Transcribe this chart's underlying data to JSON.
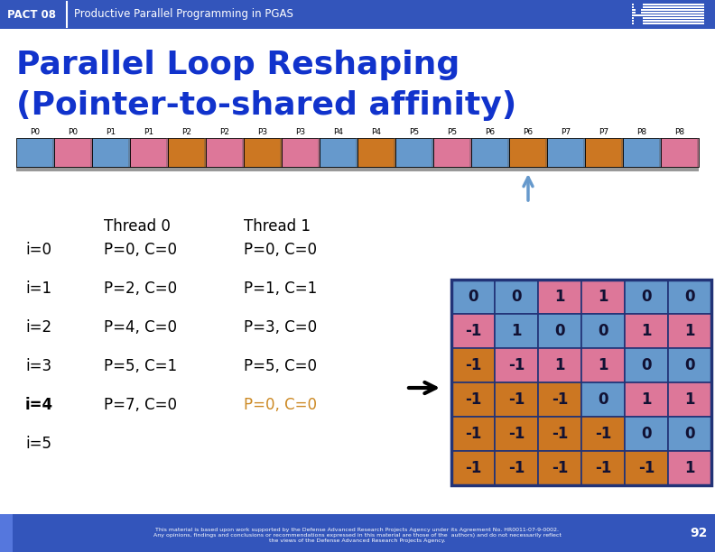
{
  "title_line1": "Parallel Loop Reshaping",
  "title_line2": "(Pointer-to-shared affinity)",
  "header_bg": "#3355bb",
  "header_text": "PACT 08",
  "header_subtitle": "Productive Parallel Programming in PGAS",
  "slide_bg": "#ffffff",
  "bar_labels": [
    "P0",
    "P0",
    "P1",
    "P1",
    "P2",
    "P2",
    "P3",
    "P3",
    "P4",
    "P4",
    "P5",
    "P5",
    "P6",
    "P6",
    "P7",
    "P7",
    "P8",
    "P8"
  ],
  "bar_colors": [
    "#6699cc",
    "#dd7799",
    "#6699cc",
    "#dd7799",
    "#cc7722",
    "#dd7799",
    "#cc7722",
    "#dd7799",
    "#6699cc",
    "#cc7722",
    "#6699cc",
    "#dd7799",
    "#6699cc",
    "#cc7722",
    "#6699cc",
    "#cc7722",
    "#6699cc",
    "#dd7799"
  ],
  "matrix": [
    [
      0,
      0,
      1,
      1,
      0,
      0
    ],
    [
      -1,
      1,
      0,
      0,
      1,
      1
    ],
    [
      -1,
      -1,
      1,
      1,
      0,
      0
    ],
    [
      -1,
      -1,
      -1,
      0,
      1,
      1
    ],
    [
      -1,
      -1,
      -1,
      -1,
      0,
      0
    ],
    [
      -1,
      -1,
      -1,
      -1,
      -1,
      1
    ]
  ],
  "cell_colors": [
    [
      "blue",
      "blue",
      "pink",
      "pink",
      "blue",
      "blue"
    ],
    [
      "pink",
      "blue",
      "blue",
      "blue",
      "pink",
      "pink"
    ],
    [
      "orange",
      "pink",
      "pink",
      "pink",
      "blue",
      "blue"
    ],
    [
      "orange",
      "orange",
      "orange",
      "blue",
      "pink",
      "pink"
    ],
    [
      "orange",
      "orange",
      "orange",
      "orange",
      "blue",
      "blue"
    ],
    [
      "orange",
      "orange",
      "orange",
      "orange",
      "orange",
      "pink"
    ]
  ],
  "matrix_blue": "#6699cc",
  "matrix_pink": "#dd7799",
  "matrix_orange": "#cc7722",
  "matrix_border": "#223377",
  "footer_text1": "This material is based upon work supported by the Defense Advanced Research Projects Agency under its Agreement No. HR0011-07-9-0002.",
  "footer_text2": "Any opinions, findings and conclusions or recommendations expressed in this material are those of the  authors) and do not necessarily reflect",
  "footer_text3": "the views of the Defense Advanced Research Projects Agency.",
  "page_num": "92",
  "title_color": "#1133cc",
  "text_color": "#000000",
  "orange_color": "#cc8822",
  "arrow_color": "#6699cc"
}
